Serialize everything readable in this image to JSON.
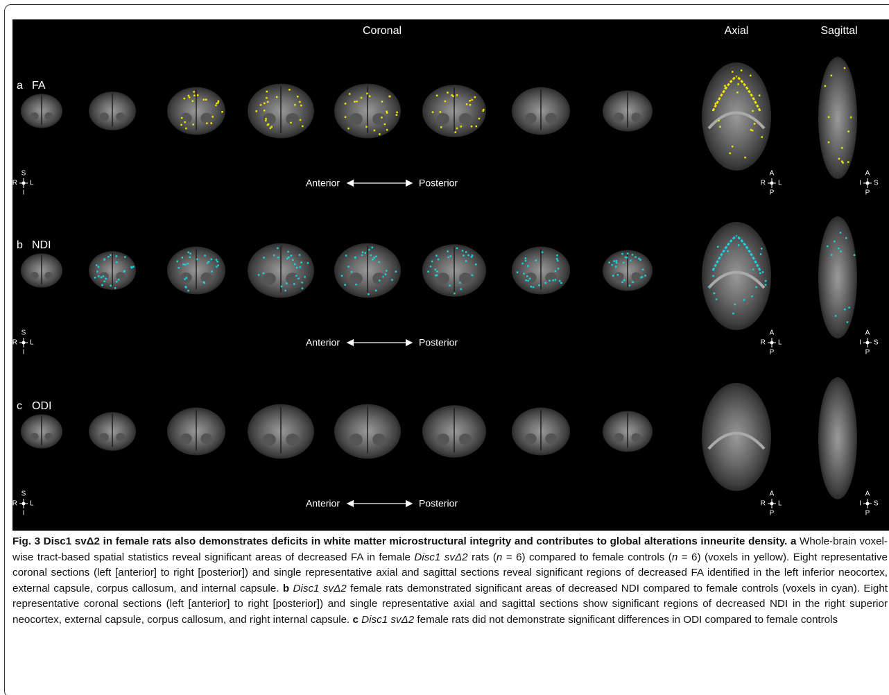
{
  "figure": {
    "headers": {
      "coronal": "Coronal",
      "axial": "Axial",
      "sagittal": "Sagittal"
    },
    "panels": [
      {
        "letter": "a",
        "label": "FA",
        "anterior": "Anterior",
        "posterior": "Posterior",
        "voxel_color": "#f2e600",
        "coronal_orient": {
          "top": "S",
          "left": "R",
          "right": "L",
          "bottom": "I"
        },
        "axial_orient": {
          "top": "A",
          "left": "R",
          "right": "L",
          "bottom": "P"
        },
        "sagittal_orient": {
          "top": "A",
          "left": "I",
          "right": "S",
          "bottom": "P"
        }
      },
      {
        "letter": "b",
        "label": "NDI",
        "anterior": "Anterior",
        "posterior": "Posterior",
        "voxel_color": "#19d3e0",
        "coronal_orient": {
          "top": "S",
          "left": "R",
          "right": "L",
          "bottom": "I"
        },
        "axial_orient": {
          "top": "A",
          "left": "R",
          "right": "L",
          "bottom": "P"
        },
        "sagittal_orient": {
          "top": "A",
          "left": "I",
          "right": "S",
          "bottom": "P"
        }
      },
      {
        "letter": "c",
        "label": "ODI",
        "anterior": "Anterior",
        "posterior": "Posterior",
        "coronal_orient": {
          "top": "S",
          "left": "R",
          "right": "L",
          "bottom": "I"
        },
        "axial_orient": {
          "top": "A",
          "left": "R",
          "right": "L",
          "bottom": "P"
        },
        "sagittal_orient": {
          "top": "A",
          "left": "I",
          "right": "S",
          "bottom": "P"
        }
      }
    ]
  },
  "caption": {
    "runs": [
      {
        "style": "bold",
        "text": "Fig. 3 Disc1 svΔ2 in female rats also demonstrates deficits in white matter microstructural integrity and contributes to global alterations inneurite density. a"
      },
      {
        "style": "normal",
        "text": " Whole-brain voxel-wise tract-based spatial statistics reveal significant areas of decreased FA in female "
      },
      {
        "style": "italic",
        "text": "Disc1 svΔ2"
      },
      {
        "style": "normal",
        "text": " rats ("
      },
      {
        "style": "italic",
        "text": "n"
      },
      {
        "style": "normal",
        "text": " = 6) compared to female controls ("
      },
      {
        "style": "italic",
        "text": "n"
      },
      {
        "style": "normal",
        "text": " = 6) (voxels in yellow). Eight representative coronal sections (left [anterior] to right [posterior]) and single representative axial and sagittal sections reveal significant regions of decreased FA identified in the left inferior neocortex, external capsule, corpus callosum, and internal capsule. "
      },
      {
        "style": "bold",
        "text": "b"
      },
      {
        "style": "italic",
        "text": " Disc1 svΔ2"
      },
      {
        "style": "normal",
        "text": " female rats demonstrated significant areas of decreased NDI compared to female controls (voxels in cyan). Eight representative coronal sections (left [anterior] to right [posterior]) and single representative axial and sagittal sections show significant regions of decreased NDI in the right superior neocortex, external capsule, corpus callosum, and right internal capsule. "
      },
      {
        "style": "bold",
        "text": "c"
      },
      {
        "style": "italic",
        "text": " Disc1 svΔ2"
      },
      {
        "style": "normal",
        "text": " female rats did not demonstrate significant differences in ODI compared to female controls"
      }
    ]
  }
}
